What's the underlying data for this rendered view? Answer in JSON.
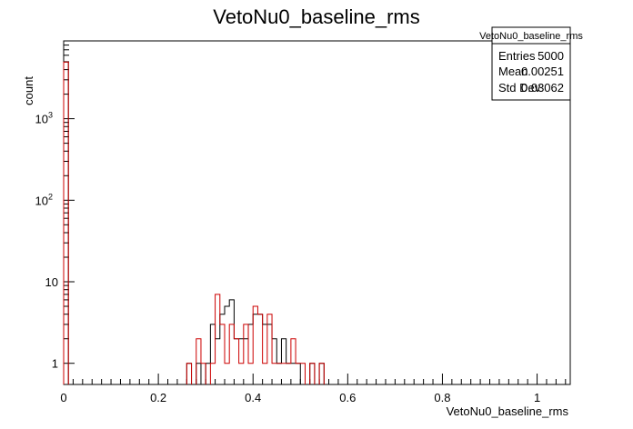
{
  "chart_data": {
    "type": "histogram",
    "title": "VetoNu0_baseline_rms",
    "xlabel": "VetoNu0_baseline_rms",
    "ylabel": "count",
    "xlim": [
      0,
      1.07
    ],
    "ylim": [
      0.55,
      9000
    ],
    "yscale": "log",
    "bin_width": 0.01,
    "x_ticks": [
      {
        "value": 0,
        "label": "0"
      },
      {
        "value": 0.2,
        "label": "0.2"
      },
      {
        "value": 0.4,
        "label": "0.4"
      },
      {
        "value": 0.6,
        "label": "0.6"
      },
      {
        "value": 0.8,
        "label": "0.8"
      },
      {
        "value": 1,
        "label": "1"
      }
    ],
    "y_ticks": [
      {
        "value": 1,
        "label": "1",
        "exp": ""
      },
      {
        "value": 10,
        "label": "10",
        "exp": ""
      },
      {
        "value": 100,
        "label": "10",
        "exp": "2"
      },
      {
        "value": 1000,
        "label": "10",
        "exp": "3"
      }
    ],
    "series": [
      {
        "color": "#000000",
        "first_bin": {
          "x0": 0.0,
          "value": 4950
        },
        "bins": [
          {
            "x0": 0.26,
            "value": 1
          },
          {
            "x0": 0.28,
            "value": 1
          },
          {
            "x0": 0.3,
            "value": 1
          },
          {
            "x0": 0.31,
            "value": 3
          },
          {
            "x0": 0.32,
            "value": 2
          },
          {
            "x0": 0.33,
            "value": 4
          },
          {
            "x0": 0.34,
            "value": 5
          },
          {
            "x0": 0.35,
            "value": 6
          },
          {
            "x0": 0.36,
            "value": 2
          },
          {
            "x0": 0.37,
            "value": 2
          },
          {
            "x0": 0.38,
            "value": 2
          },
          {
            "x0": 0.39,
            "value": 3
          },
          {
            "x0": 0.4,
            "value": 4
          },
          {
            "x0": 0.41,
            "value": 4
          },
          {
            "x0": 0.42,
            "value": 3
          },
          {
            "x0": 0.43,
            "value": 3
          },
          {
            "x0": 0.44,
            "value": 2
          },
          {
            "x0": 0.45,
            "value": 1
          },
          {
            "x0": 0.46,
            "value": 2
          },
          {
            "x0": 0.47,
            "value": 1
          },
          {
            "x0": 0.48,
            "value": 1
          },
          {
            "x0": 0.49,
            "value": 1
          },
          {
            "x0": 0.52,
            "value": 1
          },
          {
            "x0": 0.54,
            "value": 1
          }
        ]
      },
      {
        "color": "#cc0000",
        "first_bin": {
          "x0": 0.0,
          "value": 4950
        },
        "bins": [
          {
            "x0": 0.26,
            "value": 1
          },
          {
            "x0": 0.28,
            "value": 2
          },
          {
            "x0": 0.29,
            "value": 1
          },
          {
            "x0": 0.31,
            "value": 1
          },
          {
            "x0": 0.32,
            "value": 7
          },
          {
            "x0": 0.33,
            "value": 3
          },
          {
            "x0": 0.34,
            "value": 1
          },
          {
            "x0": 0.35,
            "value": 3
          },
          {
            "x0": 0.36,
            "value": 2
          },
          {
            "x0": 0.37,
            "value": 1
          },
          {
            "x0": 0.38,
            "value": 3
          },
          {
            "x0": 0.39,
            "value": 1
          },
          {
            "x0": 0.4,
            "value": 5
          },
          {
            "x0": 0.41,
            "value": 4
          },
          {
            "x0": 0.42,
            "value": 1
          },
          {
            "x0": 0.43,
            "value": 4
          },
          {
            "x0": 0.44,
            "value": 1
          },
          {
            "x0": 0.45,
            "value": 1
          },
          {
            "x0": 0.46,
            "value": 1
          },
          {
            "x0": 0.47,
            "value": 1
          },
          {
            "x0": 0.48,
            "value": 2
          },
          {
            "x0": 0.49,
            "value": 1
          },
          {
            "x0": 0.5,
            "value": 1
          },
          {
            "x0": 0.52,
            "value": 1
          },
          {
            "x0": 0.54,
            "value": 1
          }
        ]
      }
    ],
    "stats_box": {
      "title": "VetoNu0_baseline_rms",
      "rows": [
        {
          "label": "Entries",
          "value": "5000"
        },
        {
          "label": "Mean",
          "value": "0.00251"
        },
        {
          "label": "Std Dev",
          "value": "0.03062"
        }
      ]
    }
  }
}
